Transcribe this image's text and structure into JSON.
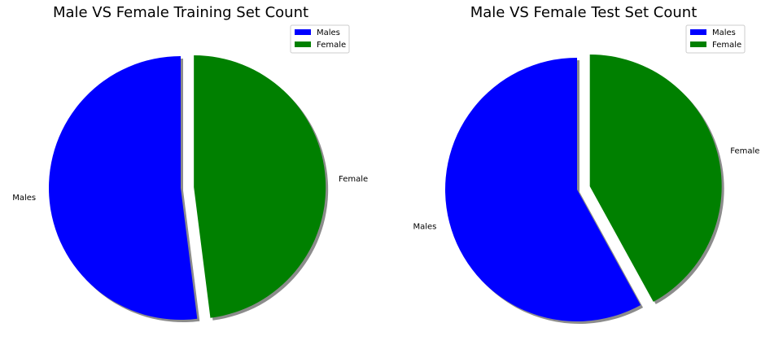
{
  "chart_data": [
    {
      "type": "pie",
      "title": "Male VS Female Training Set Count",
      "labels": [
        "Males",
        "Female"
      ],
      "values": [
        52,
        48
      ],
      "colors": [
        "#0000ff",
        "#008000"
      ],
      "explode": [
        0,
        0.1
      ],
      "shadow": true,
      "start_angle_deg": 90,
      "legend_position": "top-right",
      "legend_entries": [
        "Males",
        "Female"
      ]
    },
    {
      "type": "pie",
      "title": "Male VS Female Test Set Count",
      "labels": [
        "Males",
        "Female"
      ],
      "values": [
        58,
        42
      ],
      "colors": [
        "#0000ff",
        "#008000"
      ],
      "explode": [
        0,
        0.1
      ],
      "shadow": true,
      "start_angle_deg": 90,
      "legend_position": "top-right",
      "legend_entries": [
        "Males",
        "Female"
      ]
    }
  ]
}
